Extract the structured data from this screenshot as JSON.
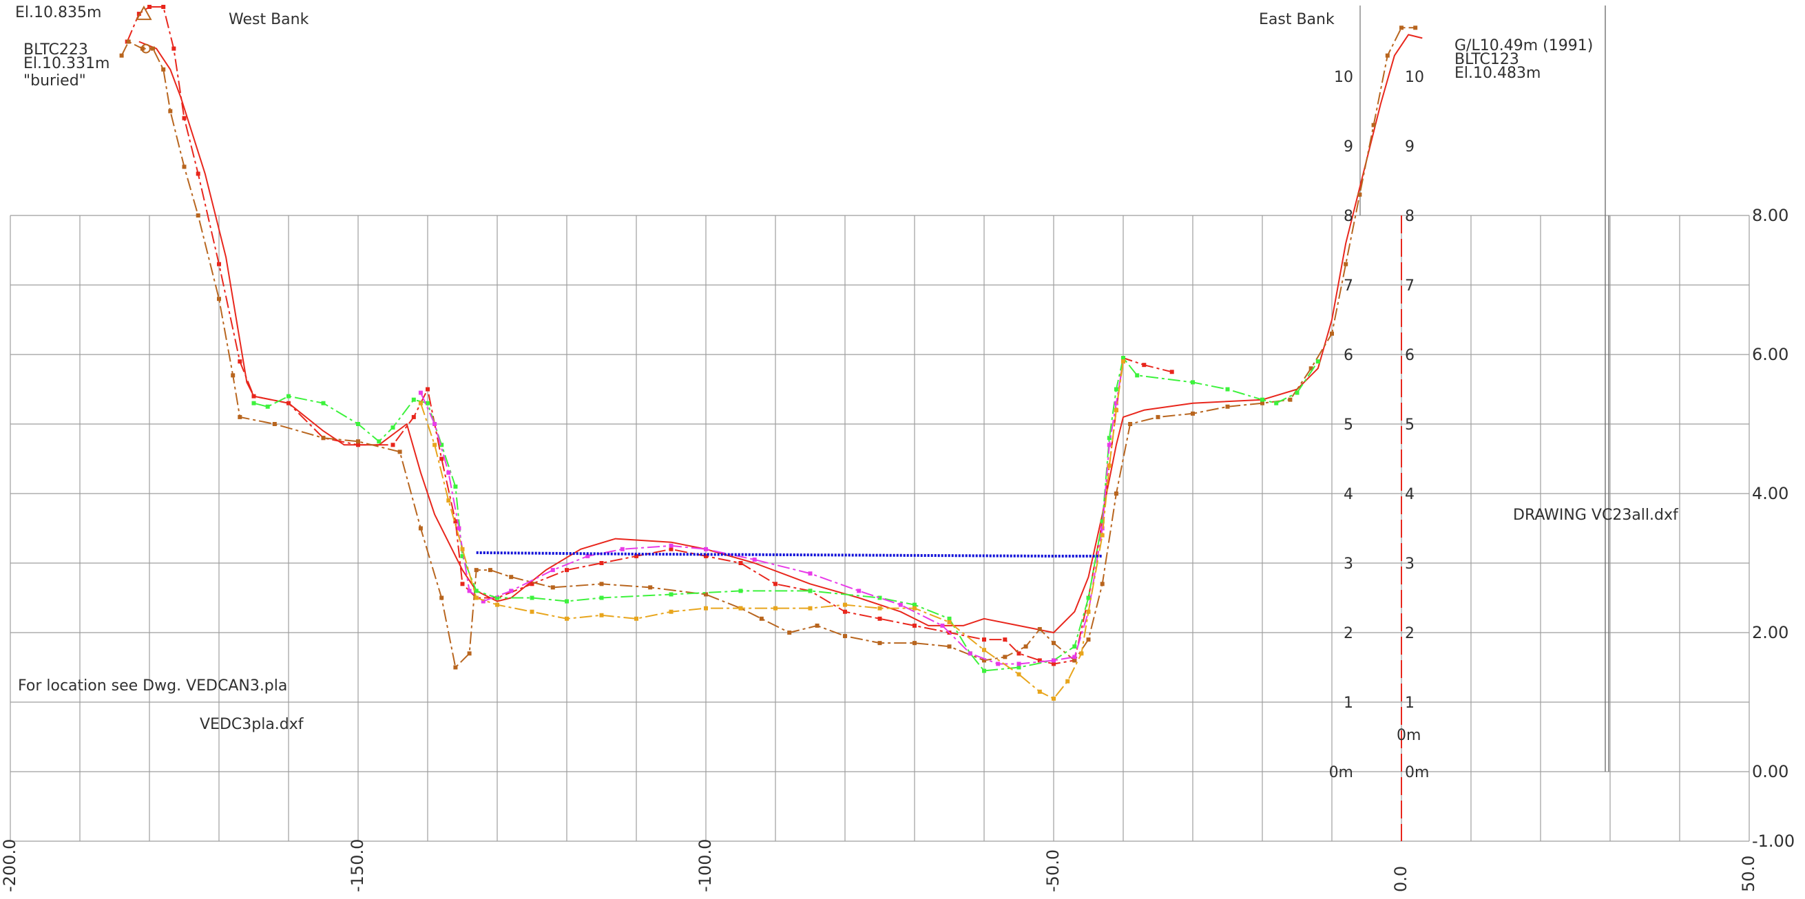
{
  "annotations": {
    "west_bank": "West Bank",
    "east_bank": "East Bank",
    "el_west_top": "El.10.835m",
    "bltc223": "BLTC223",
    "el_10331": "El.10.331m",
    "buried": "\"buried\"",
    "gl_east": "G/L10.49m (1991)",
    "bltc123": "BLTC123",
    "el_10483": "El.10.483m",
    "drawing": "DRAWING VC23all.dxf",
    "location_note": "For location see Dwg. VEDCAN3.pla",
    "vedc_file": "VEDC3pla.dxf",
    "zero_label_mid": "0m"
  },
  "colors": {
    "grid": "#9e9e9e",
    "frame": "#707070",
    "red": "#e8261c",
    "brown": "#b8651e",
    "green": "#3cf23c",
    "magenta": "#e83ae8",
    "orange": "#e8a51c",
    "blue": "#1010d8"
  },
  "chart_data": {
    "type": "line",
    "x_ticks": [
      "-200.0",
      "-150.0",
      "-100.0",
      "-50.0",
      "0.0",
      "50.0"
    ],
    "x_range": [
      -200,
      50
    ],
    "y_ticks_right": [
      "-1.00",
      "0.00",
      "2.00",
      "4.00",
      "6.00",
      "8.00"
    ],
    "y_range": [
      -1,
      11
    ],
    "inner_scale_labels": [
      "0m",
      "1",
      "2",
      "3",
      "4",
      "5",
      "6",
      "7",
      "8",
      "9",
      "10"
    ],
    "grid": true,
    "series": [
      {
        "color": "red",
        "style": "dashdot",
        "points": [
          [
            -183.2,
            10.5
          ],
          [
            -181.5,
            10.9
          ],
          [
            -180,
            11.0
          ],
          [
            -178,
            11.0
          ],
          [
            -176.5,
            10.4
          ],
          [
            -175,
            9.4
          ],
          [
            -173,
            8.6
          ],
          [
            -170,
            7.3
          ],
          [
            -167,
            5.9
          ],
          [
            -165,
            5.4
          ],
          [
            -160,
            5.3
          ],
          [
            -155,
            4.8
          ],
          [
            -150,
            4.7
          ],
          [
            -145,
            4.7
          ],
          [
            -142,
            5.1
          ],
          [
            -140,
            5.5
          ],
          [
            -138,
            4.5
          ],
          [
            -136,
            3.6
          ],
          [
            -135,
            2.7
          ],
          [
            -133,
            2.5
          ],
          [
            -130,
            2.5
          ],
          [
            -125,
            2.7
          ],
          [
            -120,
            2.9
          ],
          [
            -115,
            3.0
          ],
          [
            -110,
            3.1
          ],
          [
            -105,
            3.2
          ],
          [
            -100,
            3.1
          ],
          [
            -95,
            3.0
          ],
          [
            -90,
            2.7
          ],
          [
            -85,
            2.6
          ],
          [
            -80,
            2.3
          ],
          [
            -75,
            2.2
          ],
          [
            -70,
            2.1
          ],
          [
            -65,
            2.0
          ],
          [
            -60,
            1.9
          ],
          [
            -57,
            1.9
          ],
          [
            -55,
            1.7
          ],
          [
            -52,
            1.6
          ],
          [
            -50,
            1.55
          ],
          [
            -47,
            1.6
          ],
          [
            -45,
            2.5
          ],
          [
            -43,
            3.6
          ],
          [
            -41,
            5.2
          ],
          [
            -40,
            5.95
          ],
          [
            -37,
            5.85
          ],
          [
            -33,
            5.75
          ]
        ]
      },
      {
        "color": "red",
        "style": "solid",
        "points": [
          [
            -181.5,
            10.5
          ],
          [
            -179,
            10.4
          ],
          [
            -177,
            10.1
          ],
          [
            -175.5,
            9.7
          ],
          [
            -172,
            8.6
          ],
          [
            -169,
            7.4
          ],
          [
            -166,
            5.6
          ],
          [
            -165,
            5.4
          ],
          [
            -160,
            5.3
          ],
          [
            -155,
            4.9
          ],
          [
            -152,
            4.7
          ],
          [
            -147,
            4.7
          ],
          [
            -143,
            5.0
          ],
          [
            -141,
            4.3
          ],
          [
            -139,
            3.7
          ],
          [
            -137,
            3.3
          ],
          [
            -135,
            2.9
          ],
          [
            -133,
            2.6
          ],
          [
            -130,
            2.45
          ],
          [
            -128,
            2.5
          ],
          [
            -123,
            2.9
          ],
          [
            -118,
            3.2
          ],
          [
            -113,
            3.35
          ],
          [
            -105,
            3.3
          ],
          [
            -100,
            3.2
          ],
          [
            -93,
            3.0
          ],
          [
            -85,
            2.7
          ],
          [
            -78,
            2.5
          ],
          [
            -72,
            2.3
          ],
          [
            -68,
            2.1
          ],
          [
            -63,
            2.1
          ],
          [
            -60,
            2.2
          ],
          [
            -55,
            2.1
          ],
          [
            -50,
            2.0
          ],
          [
            -47,
            2.3
          ],
          [
            -45,
            2.8
          ],
          [
            -43,
            3.7
          ],
          [
            -41,
            4.7
          ],
          [
            -40,
            5.1
          ],
          [
            -37,
            5.2
          ],
          [
            -30,
            5.3
          ],
          [
            -20,
            5.35
          ],
          [
            -15,
            5.5
          ],
          [
            -12,
            5.8
          ],
          [
            -10,
            6.5
          ],
          [
            -8,
            7.6
          ],
          [
            -5,
            8.8
          ],
          [
            -3,
            9.6
          ],
          [
            -1,
            10.3
          ],
          [
            1,
            10.6
          ],
          [
            3,
            10.55
          ]
        ]
      },
      {
        "color": "brown",
        "style": "dashdot",
        "points": [
          [
            -184,
            10.3
          ],
          [
            -183,
            10.5
          ],
          [
            -181,
            10.4
          ],
          [
            -179.5,
            10.4
          ],
          [
            -178,
            10.1
          ],
          [
            -177,
            9.5
          ],
          [
            -175,
            8.7
          ],
          [
            -173,
            8.0
          ],
          [
            -170,
            6.8
          ],
          [
            -168,
            5.7
          ],
          [
            -167,
            5.1
          ],
          [
            -162,
            5.0
          ],
          [
            -155,
            4.8
          ],
          [
            -150,
            4.75
          ],
          [
            -144,
            4.6
          ],
          [
            -141,
            3.5
          ],
          [
            -138,
            2.5
          ],
          [
            -136,
            1.5
          ],
          [
            -134,
            1.7
          ],
          [
            -133,
            2.9
          ],
          [
            -131,
            2.9
          ],
          [
            -128,
            2.8
          ],
          [
            -122,
            2.65
          ],
          [
            -115,
            2.7
          ],
          [
            -108,
            2.65
          ],
          [
            -100,
            2.55
          ],
          [
            -95,
            2.35
          ],
          [
            -92,
            2.2
          ],
          [
            -88,
            2.0
          ],
          [
            -84,
            2.1
          ],
          [
            -80,
            1.95
          ],
          [
            -75,
            1.85
          ],
          [
            -70,
            1.85
          ],
          [
            -65,
            1.8
          ],
          [
            -60,
            1.6
          ],
          [
            -57,
            1.65
          ],
          [
            -54,
            1.8
          ],
          [
            -52,
            2.05
          ],
          [
            -50,
            1.85
          ],
          [
            -47,
            1.6
          ],
          [
            -45,
            1.9
          ],
          [
            -43,
            2.7
          ],
          [
            -41,
            4.0
          ],
          [
            -39,
            5.0
          ],
          [
            -35,
            5.1
          ],
          [
            -30,
            5.15
          ],
          [
            -25,
            5.25
          ],
          [
            -20,
            5.3
          ],
          [
            -16,
            5.35
          ],
          [
            -13,
            5.8
          ],
          [
            -10,
            6.3
          ],
          [
            -8,
            7.3
          ],
          [
            -6,
            8.3
          ],
          [
            -4,
            9.3
          ],
          [
            -2,
            10.3
          ],
          [
            0,
            10.7
          ],
          [
            2,
            10.7
          ]
        ]
      },
      {
        "color": "green",
        "style": "dashdot",
        "points": [
          [
            -165,
            5.3
          ],
          [
            -163,
            5.25
          ],
          [
            -160,
            5.4
          ],
          [
            -155,
            5.3
          ],
          [
            -150,
            5.0
          ],
          [
            -147,
            4.75
          ],
          [
            -145,
            4.95
          ],
          [
            -142,
            5.35
          ],
          [
            -140,
            5.3
          ],
          [
            -138,
            4.7
          ],
          [
            -136,
            4.1
          ],
          [
            -135,
            3.1
          ],
          [
            -133,
            2.6
          ],
          [
            -130,
            2.5
          ],
          [
            -125,
            2.5
          ],
          [
            -120,
            2.45
          ],
          [
            -115,
            2.5
          ],
          [
            -105,
            2.55
          ],
          [
            -95,
            2.6
          ],
          [
            -85,
            2.6
          ],
          [
            -75,
            2.5
          ],
          [
            -70,
            2.4
          ],
          [
            -65,
            2.2
          ],
          [
            -62,
            1.7
          ],
          [
            -60,
            1.45
          ],
          [
            -55,
            1.5
          ],
          [
            -50,
            1.6
          ],
          [
            -47,
            1.8
          ],
          [
            -45,
            2.5
          ],
          [
            -43,
            3.6
          ],
          [
            -42,
            4.8
          ],
          [
            -41,
            5.5
          ],
          [
            -40,
            5.95
          ],
          [
            -38,
            5.7
          ],
          [
            -30,
            5.6
          ],
          [
            -25,
            5.5
          ],
          [
            -20,
            5.35
          ],
          [
            -18,
            5.3
          ],
          [
            -15,
            5.45
          ],
          [
            -12,
            5.9
          ]
        ]
      },
      {
        "color": "magenta",
        "style": "dashdot",
        "points": [
          [
            -141,
            5.45
          ],
          [
            -139,
            5.0
          ],
          [
            -137,
            4.3
          ],
          [
            -135.5,
            3.5
          ],
          [
            -134,
            2.6
          ],
          [
            -132,
            2.45
          ],
          [
            -128,
            2.6
          ],
          [
            -122,
            2.9
          ],
          [
            -117,
            3.1
          ],
          [
            -112,
            3.2
          ],
          [
            -105,
            3.25
          ],
          [
            -100,
            3.2
          ],
          [
            -93,
            3.05
          ],
          [
            -85,
            2.85
          ],
          [
            -78,
            2.6
          ],
          [
            -72,
            2.4
          ],
          [
            -66,
            2.1
          ],
          [
            -62,
            1.7
          ],
          [
            -58,
            1.55
          ],
          [
            -55,
            1.55
          ],
          [
            -50,
            1.6
          ],
          [
            -47,
            1.65
          ],
          [
            -45,
            2.3
          ],
          [
            -43,
            3.5
          ],
          [
            -42,
            4.7
          ],
          [
            -41,
            5.3
          ],
          [
            -40,
            5.9
          ]
        ]
      },
      {
        "color": "orange",
        "style": "dashdot",
        "points": [
          [
            -141,
            5.3
          ],
          [
            -139,
            4.7
          ],
          [
            -137,
            3.9
          ],
          [
            -135,
            3.2
          ],
          [
            -133,
            2.5
          ],
          [
            -130,
            2.4
          ],
          [
            -125,
            2.3
          ],
          [
            -120,
            2.2
          ],
          [
            -115,
            2.25
          ],
          [
            -110,
            2.2
          ],
          [
            -105,
            2.3
          ],
          [
            -100,
            2.35
          ],
          [
            -95,
            2.35
          ],
          [
            -90,
            2.35
          ],
          [
            -85,
            2.35
          ],
          [
            -80,
            2.4
          ],
          [
            -75,
            2.35
          ],
          [
            -70,
            2.35
          ],
          [
            -65,
            2.15
          ],
          [
            -60,
            1.75
          ],
          [
            -55,
            1.4
          ],
          [
            -52,
            1.15
          ],
          [
            -50,
            1.05
          ],
          [
            -48,
            1.3
          ],
          [
            -46,
            1.7
          ],
          [
            -45,
            2.3
          ],
          [
            -43,
            3.4
          ],
          [
            -42,
            4.4
          ],
          [
            -41,
            5.2
          ],
          [
            -40,
            5.9
          ]
        ]
      },
      {
        "color": "blue",
        "style": "wavy",
        "points": [
          [
            -133,
            3.15
          ],
          [
            -110,
            3.13
          ],
          [
            -90,
            3.12
          ],
          [
            -70,
            3.11
          ],
          [
            -50,
            3.1
          ],
          [
            -43,
            3.1
          ]
        ]
      }
    ],
    "markers": [
      {
        "shape": "triangle",
        "point": [
          -180.8,
          10.9
        ]
      },
      {
        "shape": "circle",
        "point": [
          -180.5,
          10.4
        ]
      }
    ]
  }
}
